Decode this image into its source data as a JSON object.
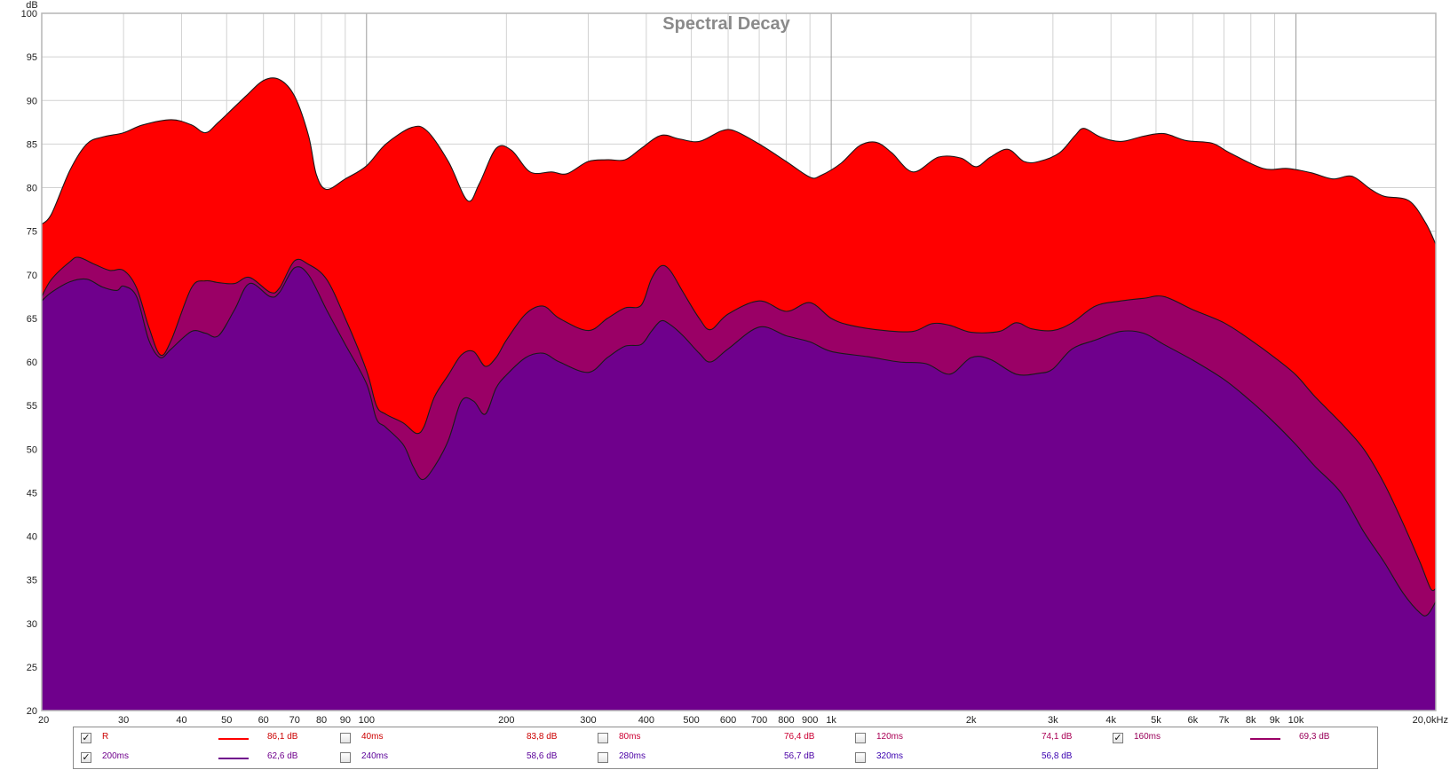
{
  "chart_data": {
    "type": "area",
    "title": "Spectral Decay",
    "ylabel": "dB",
    "xunit": "kHz",
    "ylim": [
      20,
      100
    ],
    "xlim": [
      20,
      20000
    ],
    "xscale": "log",
    "grid": true,
    "yticks": [
      20,
      25,
      30,
      35,
      40,
      45,
      50,
      55,
      60,
      65,
      70,
      75,
      80,
      85,
      90,
      95,
      100
    ],
    "xticks": [
      {
        "v": 20,
        "label": "20"
      },
      {
        "v": 30,
        "label": "30"
      },
      {
        "v": 40,
        "label": "40"
      },
      {
        "v": 50,
        "label": "50"
      },
      {
        "v": 60,
        "label": "60"
      },
      {
        "v": 70,
        "label": "70"
      },
      {
        "v": 80,
        "label": "80"
      },
      {
        "v": 90,
        "label": "90"
      },
      {
        "v": 100,
        "label": "100"
      },
      {
        "v": 200,
        "label": "200"
      },
      {
        "v": 300,
        "label": "300"
      },
      {
        "v": 400,
        "label": "400"
      },
      {
        "v": 500,
        "label": "500"
      },
      {
        "v": 600,
        "label": "600"
      },
      {
        "v": 700,
        "label": "700"
      },
      {
        "v": 800,
        "label": "800"
      },
      {
        "v": 900,
        "label": "900"
      },
      {
        "v": 1000,
        "label": "1k"
      },
      {
        "v": 2000,
        "label": "2k"
      },
      {
        "v": 3000,
        "label": "3k"
      },
      {
        "v": 4000,
        "label": "4k"
      },
      {
        "v": 5000,
        "label": "5k"
      },
      {
        "v": 6000,
        "label": "6k"
      },
      {
        "v": 7000,
        "label": "7k"
      },
      {
        "v": 8000,
        "label": "8k"
      },
      {
        "v": 9000,
        "label": "9k"
      },
      {
        "v": 10000,
        "label": "10k"
      },
      {
        "v": 20000,
        "label": "20,0kHz"
      }
    ],
    "series": [
      {
        "name": "R",
        "color": "#ff0000",
        "shown": true,
        "points": [
          [
            20,
            75.8
          ],
          [
            21,
            77
          ],
          [
            23,
            82
          ],
          [
            25,
            85
          ],
          [
            27,
            85.8
          ],
          [
            30,
            86.3
          ],
          [
            33,
            87.2
          ],
          [
            38,
            87.8
          ],
          [
            42,
            87.2
          ],
          [
            45,
            86.3
          ],
          [
            48,
            87.5
          ],
          [
            55,
            90.5
          ],
          [
            60,
            92.3
          ],
          [
            65,
            92.4
          ],
          [
            70,
            90.5
          ],
          [
            75,
            86
          ],
          [
            78,
            81.5
          ],
          [
            82,
            79.8
          ],
          [
            90,
            81
          ],
          [
            100,
            82.5
          ],
          [
            110,
            85
          ],
          [
            125,
            86.9
          ],
          [
            135,
            86.5
          ],
          [
            150,
            83
          ],
          [
            165,
            78.5
          ],
          [
            175,
            80.5
          ],
          [
            190,
            84.5
          ],
          [
            205,
            84.3
          ],
          [
            225,
            81.8
          ],
          [
            250,
            81.8
          ],
          [
            270,
            81.6
          ],
          [
            300,
            83
          ],
          [
            330,
            83.2
          ],
          [
            360,
            83.2
          ],
          [
            390,
            84.5
          ],
          [
            430,
            86
          ],
          [
            470,
            85.6
          ],
          [
            520,
            85.3
          ],
          [
            580,
            86.5
          ],
          [
            620,
            86.5
          ],
          [
            700,
            85
          ],
          [
            800,
            83
          ],
          [
            900,
            81.2
          ],
          [
            950,
            81.4
          ],
          [
            1050,
            82.8
          ],
          [
            1150,
            84.8
          ],
          [
            1250,
            85.2
          ],
          [
            1350,
            84
          ],
          [
            1500,
            81.8
          ],
          [
            1700,
            83.5
          ],
          [
            1900,
            83.4
          ],
          [
            2050,
            82.4
          ],
          [
            2200,
            83.5
          ],
          [
            2400,
            84.4
          ],
          [
            2600,
            83
          ],
          [
            2800,
            83
          ],
          [
            3100,
            84
          ],
          [
            3350,
            86
          ],
          [
            3500,
            86.8
          ],
          [
            3800,
            85.8
          ],
          [
            4200,
            85.3
          ],
          [
            4700,
            85.9
          ],
          [
            5200,
            86.2
          ],
          [
            5800,
            85.4
          ],
          [
            6600,
            85.1
          ],
          [
            7200,
            84
          ],
          [
            8500,
            82.2
          ],
          [
            9600,
            82.2
          ],
          [
            10800,
            81.7
          ],
          [
            12000,
            81
          ],
          [
            13200,
            81.3
          ],
          [
            14500,
            79.8
          ],
          [
            15500,
            79
          ],
          [
            17500,
            78.5
          ],
          [
            19000,
            76
          ],
          [
            20000,
            73.5
          ]
        ]
      },
      {
        "name": "160ms",
        "color": "#9a0066",
        "shown": true,
        "points": [
          [
            20,
            67.5
          ],
          [
            21,
            69.5
          ],
          [
            23,
            71.5
          ],
          [
            24,
            72
          ],
          [
            26,
            71.2
          ],
          [
            28,
            70.5
          ],
          [
            30,
            70.5
          ],
          [
            32,
            68.5
          ],
          [
            34,
            64
          ],
          [
            36,
            60.8
          ],
          [
            38,
            62.5
          ],
          [
            42,
            68.5
          ],
          [
            45,
            69.3
          ],
          [
            48,
            69.1
          ],
          [
            52,
            69
          ],
          [
            56,
            69.7
          ],
          [
            62,
            68
          ],
          [
            65,
            68.5
          ],
          [
            70,
            71.6
          ],
          [
            75,
            71.2
          ],
          [
            82,
            69.5
          ],
          [
            90,
            65
          ],
          [
            100,
            59
          ],
          [
            105,
            55
          ],
          [
            110,
            54
          ],
          [
            120,
            53
          ],
          [
            128,
            51.8
          ],
          [
            133,
            52.6
          ],
          [
            140,
            56
          ],
          [
            150,
            58.5
          ],
          [
            160,
            60.8
          ],
          [
            170,
            61.2
          ],
          [
            180,
            59.5
          ],
          [
            190,
            60.5
          ],
          [
            200,
            62.5
          ],
          [
            220,
            65.5
          ],
          [
            240,
            66.4
          ],
          [
            260,
            65
          ],
          [
            300,
            63.6
          ],
          [
            330,
            65
          ],
          [
            360,
            66.2
          ],
          [
            390,
            66.5
          ],
          [
            410,
            69.5
          ],
          [
            430,
            71
          ],
          [
            450,
            70.5
          ],
          [
            480,
            68
          ],
          [
            520,
            65
          ],
          [
            550,
            63.7
          ],
          [
            600,
            65.5
          ],
          [
            700,
            67
          ],
          [
            800,
            65.8
          ],
          [
            900,
            66.8
          ],
          [
            1000,
            65
          ],
          [
            1100,
            64.2
          ],
          [
            1300,
            63.6
          ],
          [
            1500,
            63.5
          ],
          [
            1650,
            64.4
          ],
          [
            1800,
            64.2
          ],
          [
            2000,
            63.4
          ],
          [
            2300,
            63.5
          ],
          [
            2500,
            64.5
          ],
          [
            2700,
            63.8
          ],
          [
            3000,
            63.6
          ],
          [
            3300,
            64.5
          ],
          [
            3700,
            66.4
          ],
          [
            4200,
            67
          ],
          [
            4700,
            67.3
          ],
          [
            5200,
            67.5
          ],
          [
            6000,
            66
          ],
          [
            7000,
            64.5
          ],
          [
            8000,
            62.5
          ],
          [
            9000,
            60.5
          ],
          [
            10000,
            58.5
          ],
          [
            11000,
            56
          ],
          [
            12500,
            53
          ],
          [
            14000,
            50
          ],
          [
            15500,
            46
          ],
          [
            17000,
            41.5
          ],
          [
            18500,
            37
          ],
          [
            19500,
            34
          ],
          [
            20000,
            34
          ]
        ]
      },
      {
        "name": "200ms",
        "color": "#6f008c",
        "shown": true,
        "points": [
          [
            20,
            67
          ],
          [
            21,
            68
          ],
          [
            23,
            69.2
          ],
          [
            25,
            69.5
          ],
          [
            27,
            68.6
          ],
          [
            29,
            68.2
          ],
          [
            30,
            68.7
          ],
          [
            32,
            67.5
          ],
          [
            34,
            62.5
          ],
          [
            36,
            60.5
          ],
          [
            38,
            61.5
          ],
          [
            42,
            63.5
          ],
          [
            45,
            63.3
          ],
          [
            48,
            63
          ],
          [
            52,
            66
          ],
          [
            56,
            69
          ],
          [
            62,
            67.5
          ],
          [
            65,
            68
          ],
          [
            70,
            70.8
          ],
          [
            75,
            70
          ],
          [
            82,
            66
          ],
          [
            90,
            62
          ],
          [
            100,
            57.5
          ],
          [
            105,
            53.5
          ],
          [
            110,
            52.5
          ],
          [
            120,
            50.5
          ],
          [
            126,
            48
          ],
          [
            132,
            46.5
          ],
          [
            140,
            48
          ],
          [
            150,
            51
          ],
          [
            160,
            55.5
          ],
          [
            170,
            55.5
          ],
          [
            180,
            54
          ],
          [
            190,
            57
          ],
          [
            200,
            58.5
          ],
          [
            220,
            60.5
          ],
          [
            240,
            61
          ],
          [
            260,
            60
          ],
          [
            300,
            58.8
          ],
          [
            330,
            60.5
          ],
          [
            360,
            61.8
          ],
          [
            390,
            62
          ],
          [
            410,
            63.5
          ],
          [
            430,
            64.7
          ],
          [
            450,
            64.3
          ],
          [
            480,
            63
          ],
          [
            520,
            61
          ],
          [
            550,
            60
          ],
          [
            600,
            61.5
          ],
          [
            700,
            64
          ],
          [
            800,
            63
          ],
          [
            900,
            62.3
          ],
          [
            1000,
            61.2
          ],
          [
            1200,
            60.6
          ],
          [
            1400,
            60
          ],
          [
            1600,
            59.8
          ],
          [
            1800,
            58.6
          ],
          [
            2000,
            60.5
          ],
          [
            2200,
            60.3
          ],
          [
            2500,
            58.6
          ],
          [
            2800,
            58.7
          ],
          [
            3000,
            59.2
          ],
          [
            3300,
            61.5
          ],
          [
            3700,
            62.5
          ],
          [
            4200,
            63.5
          ],
          [
            4700,
            63.3
          ],
          [
            5200,
            62
          ],
          [
            6000,
            60.2
          ],
          [
            7000,
            58
          ],
          [
            8000,
            55.5
          ],
          [
            9000,
            53
          ],
          [
            10000,
            50.5
          ],
          [
            11000,
            48
          ],
          [
            12500,
            45
          ],
          [
            14000,
            40.5
          ],
          [
            15500,
            37
          ],
          [
            17000,
            33.5
          ],
          [
            18500,
            31.2
          ],
          [
            19200,
            31
          ],
          [
            20000,
            32.5
          ]
        ]
      }
    ],
    "legend": [
      {
        "name": "R",
        "checked": true,
        "line_color": "#ff0000",
        "value": "86,1 dB",
        "text_color": "#cc0000"
      },
      {
        "name": "40ms",
        "checked": false,
        "line_color": null,
        "value": "83,8 dB",
        "text_color": "#cc0000"
      },
      {
        "name": "80ms",
        "checked": false,
        "line_color": null,
        "value": "76,4 dB",
        "text_color": "#cc0033"
      },
      {
        "name": "120ms",
        "checked": false,
        "line_color": null,
        "value": "74,1 dB",
        "text_color": "#aa0055"
      },
      {
        "name": "160ms",
        "checked": true,
        "line_color": "#9a0066",
        "value": "69,3 dB",
        "text_color": "#99005a"
      },
      {
        "name": "200ms",
        "checked": true,
        "line_color": "#6f008c",
        "value": "62,6 dB",
        "text_color": "#6f008c"
      },
      {
        "name": "240ms",
        "checked": false,
        "line_color": null,
        "value": "58,6 dB",
        "text_color": "#5a0099"
      },
      {
        "name": "280ms",
        "checked": false,
        "line_color": null,
        "value": "56,7 dB",
        "text_color": "#4a00a5"
      },
      {
        "name": "320ms",
        "checked": false,
        "line_color": null,
        "value": "56,8 dB",
        "text_color": "#3a00b0"
      }
    ]
  }
}
